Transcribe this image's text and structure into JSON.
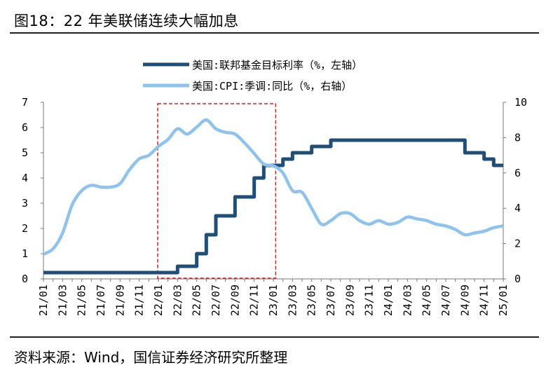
{
  "header": {
    "title": "图18：22 年美联储连续大幅加息"
  },
  "footer": {
    "source": "资料来源：Wind，国信证券经济研究所整理"
  },
  "chart_data": {
    "type": "line",
    "x": [
      "21/01",
      "21/02",
      "21/03",
      "21/04",
      "21/05",
      "21/06",
      "21/07",
      "21/08",
      "21/09",
      "21/10",
      "21/11",
      "21/12",
      "22/01",
      "22/02",
      "22/03",
      "22/04",
      "22/05",
      "22/06",
      "22/07",
      "22/08",
      "22/09",
      "22/10",
      "22/11",
      "22/12",
      "23/01",
      "23/02",
      "23/03",
      "23/04",
      "23/05",
      "23/06",
      "23/07",
      "23/08",
      "23/09",
      "23/10",
      "23/11",
      "23/12",
      "24/01",
      "24/02",
      "24/03",
      "24/04",
      "24/05",
      "24/06",
      "24/07",
      "24/08",
      "24/09",
      "24/10",
      "24/11",
      "24/12",
      "25/01"
    ],
    "xticks": [
      "21/01",
      "21/03",
      "21/05",
      "21/07",
      "21/09",
      "21/11",
      "22/01",
      "22/03",
      "22/05",
      "22/07",
      "22/09",
      "22/11",
      "23/01",
      "23/03",
      "23/05",
      "23/07",
      "23/09",
      "23/11",
      "24/01",
      "24/03",
      "24/05",
      "24/07",
      "24/09",
      "24/11",
      "25/01"
    ],
    "series": [
      {
        "name": "美国:联邦基金目标利率（%，左轴）",
        "axis": "left",
        "color": "#1f4e79",
        "step": true,
        "values": [
          0.25,
          0.25,
          0.25,
          0.25,
          0.25,
          0.25,
          0.25,
          0.25,
          0.25,
          0.25,
          0.25,
          0.25,
          0.25,
          0.25,
          0.5,
          0.5,
          1.0,
          1.75,
          2.5,
          2.5,
          3.25,
          3.25,
          4.0,
          4.5,
          4.5,
          4.75,
          5.0,
          5.0,
          5.25,
          5.25,
          5.5,
          5.5,
          5.5,
          5.5,
          5.5,
          5.5,
          5.5,
          5.5,
          5.5,
          5.5,
          5.5,
          5.5,
          5.5,
          5.5,
          5.0,
          5.0,
          4.75,
          4.5,
          4.5
        ]
      },
      {
        "name": "美国:CPI:季调:同比（%，右轴）",
        "axis": "right",
        "color": "#8ec3f0",
        "step": false,
        "values": [
          1.4,
          1.7,
          2.6,
          4.2,
          5.0,
          5.3,
          5.2,
          5.2,
          5.4,
          6.2,
          6.8,
          7.0,
          7.5,
          7.9,
          8.5,
          8.2,
          8.6,
          9.0,
          8.5,
          8.3,
          8.2,
          7.7,
          7.1,
          6.5,
          6.4,
          6.0,
          5.0,
          4.9,
          4.0,
          3.1,
          3.3,
          3.7,
          3.7,
          3.3,
          3.1,
          3.3,
          3.1,
          3.2,
          3.5,
          3.4,
          3.3,
          3.1,
          3.0,
          2.8,
          2.5,
          2.6,
          2.7,
          2.9,
          3.0
        ]
      }
    ],
    "ylim_left": [
      0,
      7
    ],
    "yticks_left": [
      0,
      1,
      2,
      3,
      4,
      5,
      6,
      7
    ],
    "ylim_right": [
      0,
      10
    ],
    "yticks_right": [
      0,
      2,
      4,
      6,
      8,
      10
    ],
    "legend": "top",
    "grid": false,
    "highlight": {
      "from": "22/01",
      "to": "22/12",
      "style": "dashed",
      "color": "#e31a1c"
    }
  }
}
